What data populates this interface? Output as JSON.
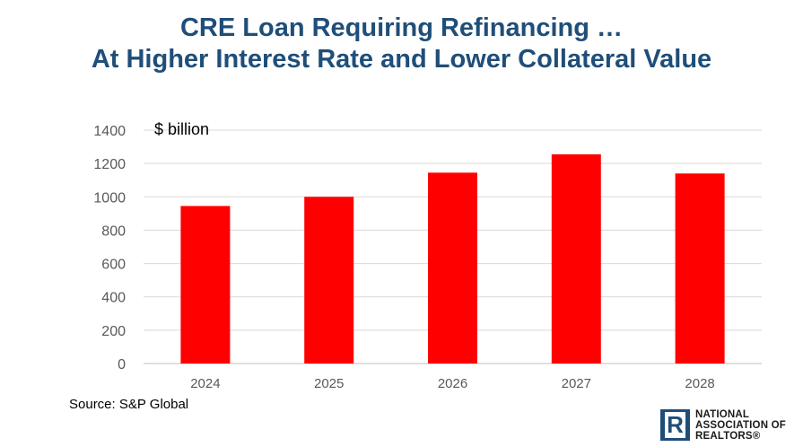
{
  "title_line1": "CRE Loan Requiring Refinancing …",
  "title_line2": "At Higher Interest Rate and Lower Collateral Value",
  "source": "Source: S&P Global",
  "logo": {
    "line1": "NATIONAL",
    "line2": "ASSOCIATION OF",
    "line3": "REALTORS®",
    "mark": "R"
  },
  "colors": {
    "bar": "#ff0000",
    "title": "#1f4e79",
    "grid": "#d9d9d9"
  },
  "chart_data": {
    "type": "bar",
    "title": "CRE Loan Requiring Refinancing … At Higher Interest Rate and Lower Collateral Value",
    "unit_label": "$ billion",
    "categories": [
      "2024",
      "2025",
      "2026",
      "2027",
      "2028"
    ],
    "values": [
      945,
      1000,
      1145,
      1255,
      1140
    ],
    "ylim": [
      0,
      1400
    ],
    "yticks": [
      0,
      200,
      400,
      600,
      800,
      1000,
      1200,
      1400
    ],
    "grid": true,
    "legend": "none"
  }
}
